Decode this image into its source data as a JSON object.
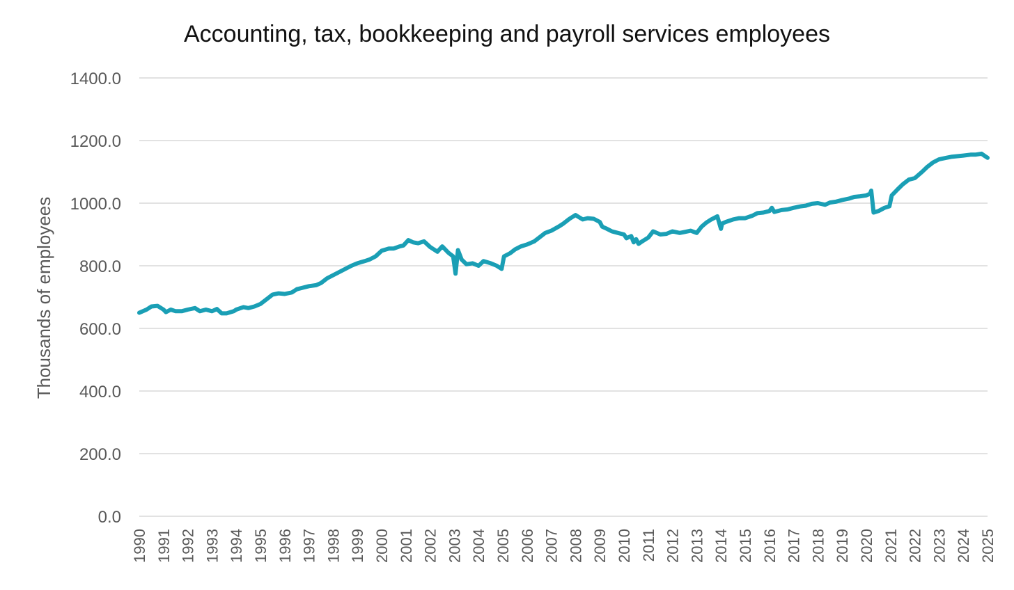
{
  "chart_data": {
    "type": "line",
    "title": "Accounting, tax, bookkeeping and payroll services employees",
    "xlabel": "",
    "ylabel": "Thousands of employees",
    "ylim": [
      0,
      1400
    ],
    "yticks": [
      "0.0",
      "200.0",
      "400.0",
      "600.0",
      "800.0",
      "1000.0",
      "1200.0",
      "1400.0"
    ],
    "xlim": [
      1990,
      2025
    ],
    "xticks": [
      "1990",
      "1991",
      "1992",
      "1993",
      "1994",
      "1995",
      "1996",
      "1997",
      "1998",
      "1999",
      "2000",
      "2001",
      "2002",
      "2003",
      "2004",
      "2005",
      "2006",
      "2007",
      "2008",
      "2009",
      "2010",
      "2011",
      "2012",
      "2013",
      "2014",
      "2015",
      "2016",
      "2017",
      "2018",
      "2019",
      "2020",
      "2021",
      "2022",
      "2023",
      "2024",
      "2025"
    ],
    "grid": true,
    "legend": "none",
    "series_color": "#1a9fb5",
    "series": [
      {
        "x": [
          1990.0,
          1990.3,
          1990.5,
          1990.75,
          1991.0,
          1991.1,
          1991.3,
          1991.5,
          1991.75,
          1992.0,
          1992.3,
          1992.5,
          1992.75,
          1993.0,
          1993.2,
          1993.4,
          1993.6,
          1993.9,
          1994.0,
          1994.3,
          1994.5,
          1994.75,
          1995.0,
          1995.2,
          1995.5,
          1995.75,
          1996.0,
          1996.3,
          1996.5,
          1996.75,
          1997.0,
          1997.3,
          1997.5,
          1997.75,
          1998.0,
          1998.3,
          1998.5,
          1998.75,
          1999.0,
          1999.3,
          1999.5,
          1999.75,
          2000.0,
          2000.3,
          2000.5,
          2000.75,
          2000.9,
          2001.1,
          2001.3,
          2001.5,
          2001.75,
          2002.0,
          2002.3,
          2002.5,
          2002.75,
          2002.95,
          2003.05,
          2003.15,
          2003.3,
          2003.5,
          2003.75,
          2004.0,
          2004.2,
          2004.5,
          2004.75,
          2004.95,
          2005.05,
          2005.3,
          2005.5,
          2005.75,
          2006.0,
          2006.3,
          2006.5,
          2006.75,
          2007.0,
          2007.3,
          2007.5,
          2007.75,
          2008.0,
          2008.15,
          2008.3,
          2008.5,
          2008.75,
          2009.0,
          2009.1,
          2009.3,
          2009.5,
          2009.75,
          2010.0,
          2010.1,
          2010.3,
          2010.4,
          2010.5,
          2010.6,
          2010.75,
          2011.0,
          2011.2,
          2011.5,
          2011.75,
          2012.0,
          2012.3,
          2012.5,
          2012.75,
          2013.0,
          2013.2,
          2013.4,
          2013.6,
          2013.85,
          2014.0,
          2014.05,
          2014.2,
          2014.5,
          2014.75,
          2015.0,
          2015.3,
          2015.5,
          2015.75,
          2016.0,
          2016.1,
          2016.2,
          2016.5,
          2016.75,
          2017.0,
          2017.3,
          2017.5,
          2017.75,
          2018.0,
          2018.3,
          2018.5,
          2018.75,
          2019.0,
          2019.3,
          2019.5,
          2019.75,
          2020.0,
          2020.15,
          2020.2,
          2020.3,
          2020.5,
          2020.75,
          2020.95,
          2021.05,
          2021.3,
          2021.5,
          2021.75,
          2022.0,
          2022.3,
          2022.5,
          2022.75,
          2023.0,
          2023.3,
          2023.5,
          2023.75,
          2024.0,
          2024.3,
          2024.5,
          2024.75,
          2024.9,
          2025.0
        ],
        "y": [
          650,
          660,
          670,
          672,
          660,
          652,
          660,
          655,
          655,
          660,
          665,
          655,
          660,
          655,
          662,
          648,
          648,
          655,
          660,
          668,
          665,
          670,
          678,
          690,
          708,
          712,
          710,
          715,
          725,
          730,
          735,
          738,
          745,
          760,
          770,
          782,
          790,
          800,
          808,
          815,
          820,
          830,
          848,
          855,
          855,
          862,
          865,
          882,
          875,
          872,
          878,
          860,
          845,
          862,
          842,
          830,
          775,
          850,
          820,
          805,
          808,
          800,
          815,
          808,
          800,
          790,
          830,
          840,
          852,
          862,
          868,
          878,
          890,
          905,
          912,
          925,
          935,
          950,
          962,
          955,
          948,
          952,
          950,
          940,
          925,
          918,
          910,
          905,
          900,
          888,
          895,
          875,
          885,
          870,
          878,
          890,
          910,
          900,
          902,
          910,
          905,
          908,
          912,
          905,
          925,
          938,
          948,
          958,
          918,
          935,
          940,
          948,
          952,
          952,
          960,
          968,
          970,
          975,
          985,
          972,
          978,
          980,
          985,
          990,
          992,
          998,
          1000,
          995,
          1002,
          1005,
          1010,
          1015,
          1020,
          1022,
          1025,
          1030,
          1040,
          970,
          975,
          985,
          990,
          1025,
          1045,
          1060,
          1075,
          1080,
          1100,
          1115,
          1130,
          1140,
          1145,
          1148,
          1150,
          1152,
          1155,
          1155,
          1158,
          1150,
          1145
        ]
      }
    ]
  }
}
